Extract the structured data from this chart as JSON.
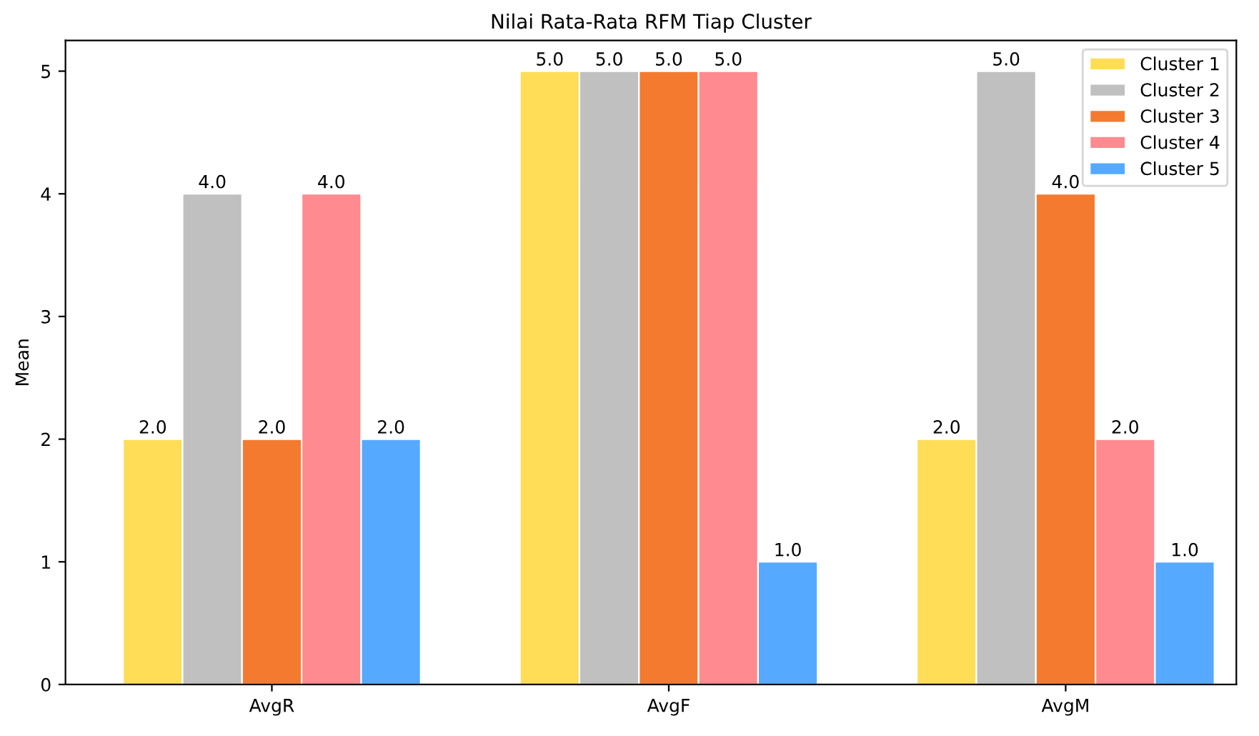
{
  "chart_data": {
    "type": "bar",
    "title": "Nilai Rata-Rata RFM Tiap Cluster",
    "ylabel": "Mean",
    "categories": [
      "AvgR",
      "AvgF",
      "AvgM"
    ],
    "series": [
      {
        "name": "Cluster 1",
        "color": "#ffdd57",
        "values": [
          2.0,
          5.0,
          2.0
        ],
        "value_labels": [
          "2.0",
          "5.0",
          "2.0"
        ]
      },
      {
        "name": "Cluster 2",
        "color": "#c0c0c0",
        "values": [
          4.0,
          5.0,
          5.0
        ],
        "value_labels": [
          "4.0",
          "5.0",
          "5.0"
        ]
      },
      {
        "name": "Cluster 3",
        "color": "#f47a30",
        "values": [
          2.0,
          5.0,
          4.0
        ],
        "value_labels": [
          "2.0",
          "5.0",
          "4.0"
        ]
      },
      {
        "name": "Cluster 4",
        "color": "#ff8a8f",
        "values": [
          4.0,
          5.0,
          2.0
        ],
        "value_labels": [
          "4.0",
          "5.0",
          "2.0"
        ]
      },
      {
        "name": "Cluster 5",
        "color": "#55aaff",
        "values": [
          2.0,
          1.0,
          1.0
        ],
        "value_labels": [
          "2.0",
          "1.0",
          "1.0"
        ]
      }
    ],
    "ylim": [
      0,
      5.25
    ],
    "yticks": [
      0,
      1,
      2,
      3,
      4,
      5
    ],
    "legend": "top right",
    "grid": false
  }
}
